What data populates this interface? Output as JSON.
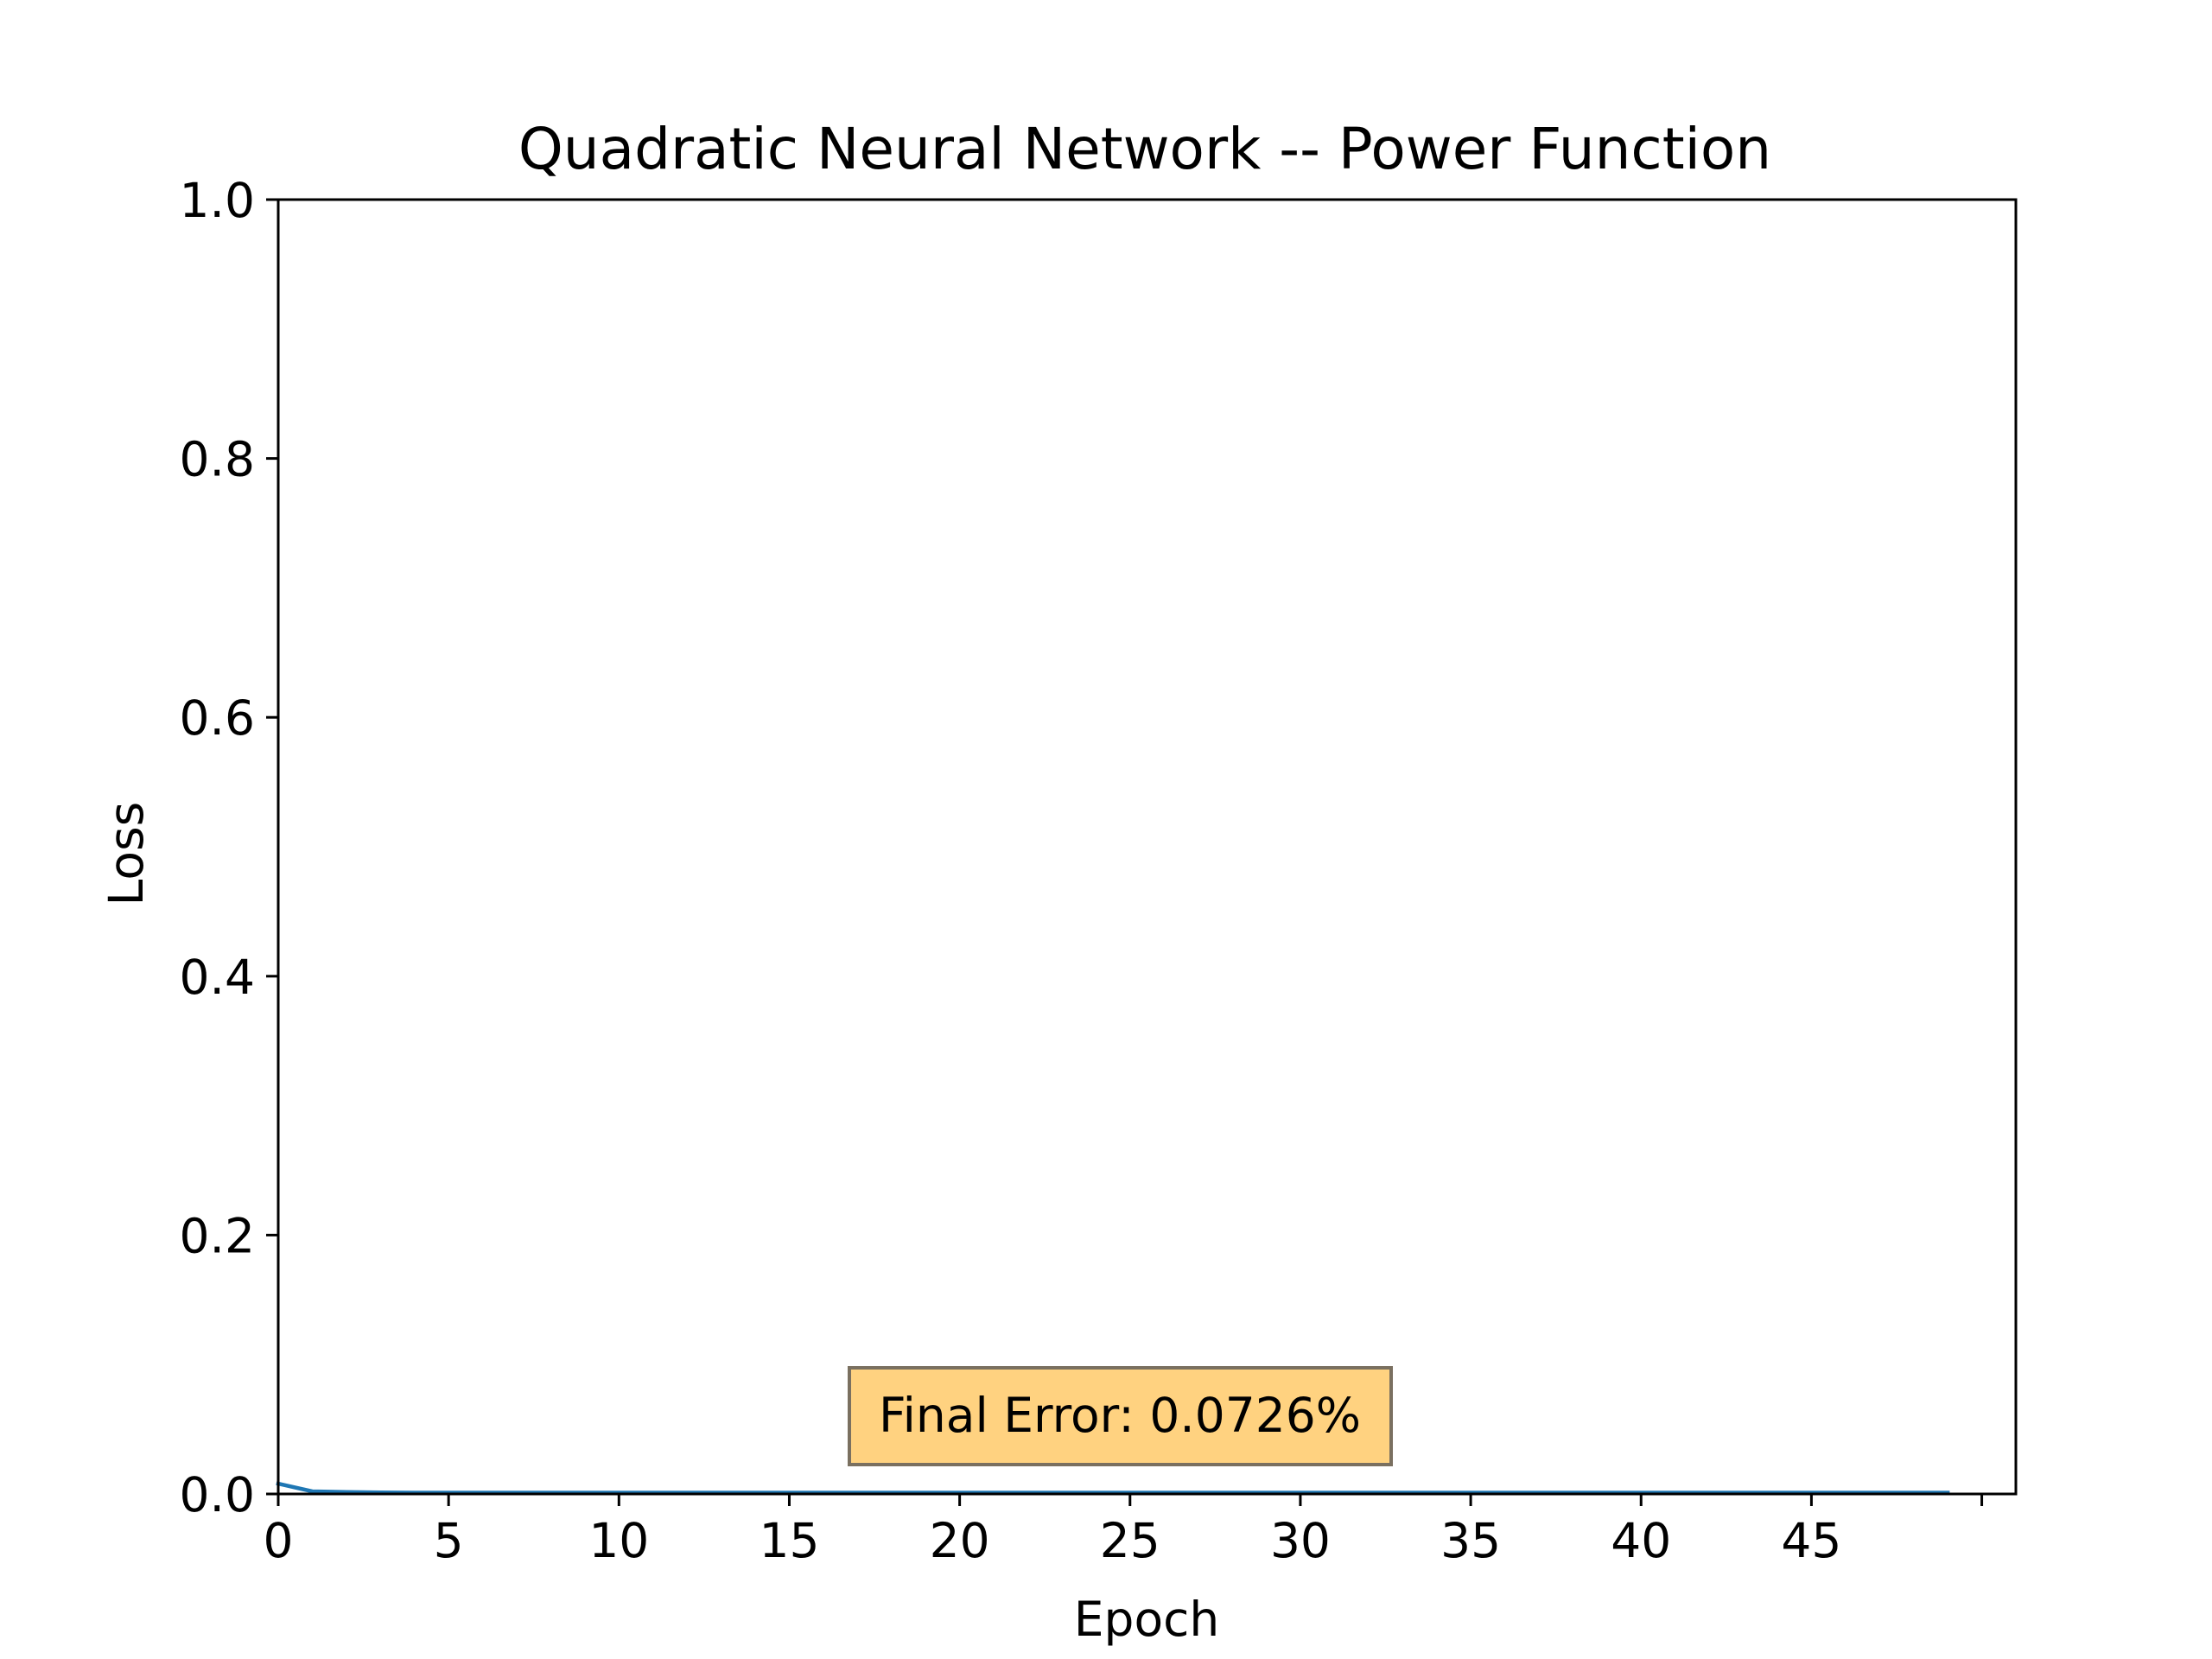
{
  "chart_data": {
    "type": "line",
    "title": "Quadratic Neural Network -- Power Function",
    "xlabel": "Epoch",
    "ylabel": "Loss",
    "xlim": [
      0,
      51
    ],
    "ylim": [
      0.0,
      1.0
    ],
    "xticks": [
      0,
      5,
      10,
      15,
      20,
      25,
      30,
      35,
      40,
      45,
      50
    ],
    "xtick_labels": [
      "0",
      "5",
      "10",
      "15",
      "20",
      "25",
      "30",
      "35",
      "40",
      "45",
      ""
    ],
    "yticks": [
      0.0,
      0.2,
      0.4,
      0.6,
      0.8,
      1.0
    ],
    "ytick_labels": [
      "0.0",
      "0.2",
      "0.4",
      "0.6",
      "0.8",
      "1.0"
    ],
    "grid": false,
    "series": [
      {
        "color": "#1f77b4",
        "x": [
          0,
          1,
          2,
          3,
          4,
          5,
          6,
          7,
          8,
          9,
          10,
          11,
          12,
          13,
          14,
          15,
          16,
          17,
          18,
          19,
          20,
          21,
          22,
          23,
          24,
          25,
          26,
          27,
          28,
          29,
          30,
          31,
          32,
          33,
          34,
          35,
          36,
          37,
          38,
          39,
          40,
          41,
          42,
          43,
          44,
          45,
          46,
          47,
          48,
          49
        ],
        "values": [
          0.008,
          0.002,
          0.0015,
          0.0012,
          0.001,
          0.001,
          0.001,
          0.001,
          0.001,
          0.001,
          0.001,
          0.001,
          0.001,
          0.001,
          0.001,
          0.001,
          0.001,
          0.001,
          0.001,
          0.001,
          0.001,
          0.001,
          0.001,
          0.001,
          0.001,
          0.001,
          0.001,
          0.001,
          0.001,
          0.001,
          0.001,
          0.001,
          0.001,
          0.001,
          0.001,
          0.001,
          0.001,
          0.001,
          0.001,
          0.001,
          0.001,
          0.001,
          0.001,
          0.001,
          0.001,
          0.001,
          0.001,
          0.001,
          0.001,
          0.001
        ]
      }
    ],
    "annotation": {
      "text": "Final Error: 0.0726%",
      "facecolor": "#ffd280",
      "edgecolor": "#7a7060"
    }
  }
}
